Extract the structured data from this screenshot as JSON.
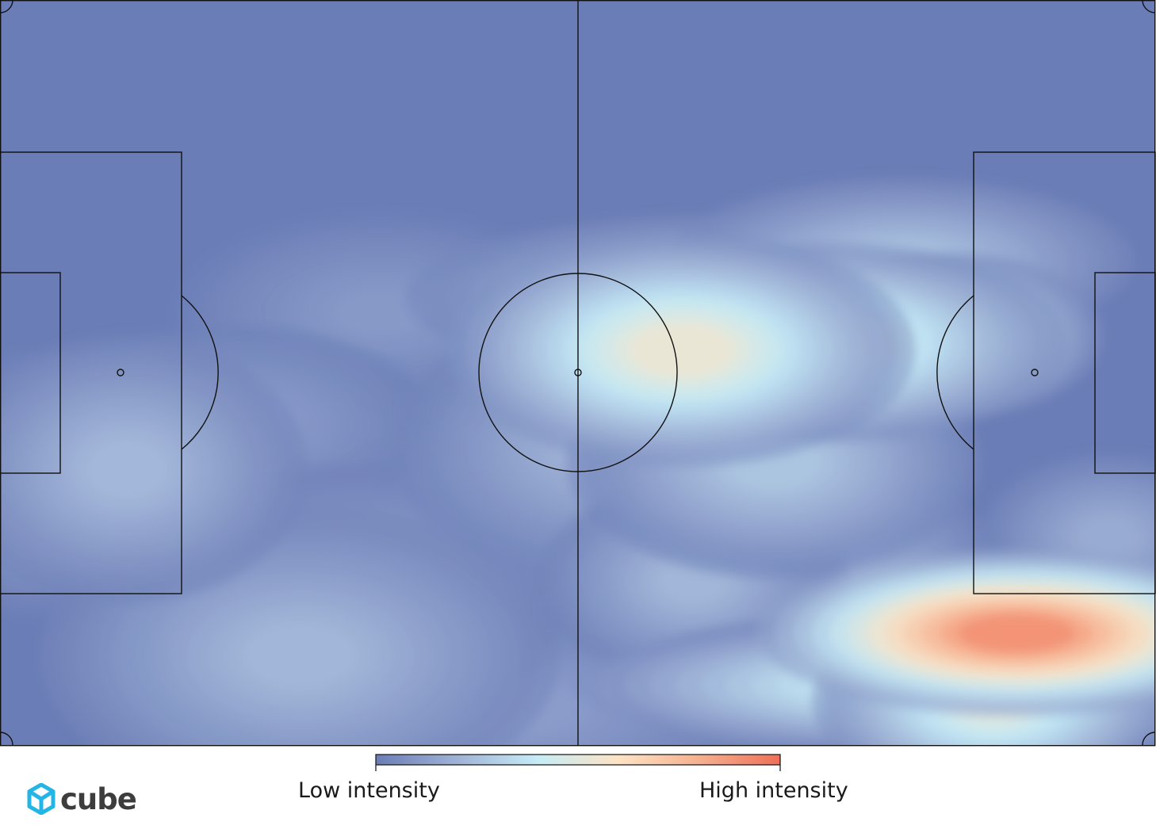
{
  "chart_data": {
    "type": "heatmap",
    "title": "",
    "xlabel": "",
    "ylabel": "",
    "colorbar": {
      "low_label": "Low intensity",
      "high_label": "High intensity",
      "colors": [
        "#6b7db6",
        "#9fb2d6",
        "#c6ecf7",
        "#fde3c4",
        "#f6b08f",
        "#ef6f57"
      ]
    },
    "hotspots": [
      {
        "x": 88,
        "y": 15,
        "intensity": 1.0,
        "rx": 10,
        "ry": 5
      },
      {
        "x": 86,
        "y": 6,
        "intensity": 0.55,
        "rx": 7,
        "ry": 6
      },
      {
        "x": 81,
        "y": 8,
        "intensity": 0.5,
        "rx": 14,
        "ry": 4
      },
      {
        "x": 69,
        "y": 8,
        "intensity": 0.35,
        "rx": 7,
        "ry": 4
      },
      {
        "x": 59,
        "y": 53,
        "intensity": 0.6,
        "rx": 9,
        "ry": 7
      },
      {
        "x": 72,
        "y": 54,
        "intensity": 0.55,
        "rx": 9,
        "ry": 6
      },
      {
        "x": 82,
        "y": 55,
        "intensity": 0.45,
        "rx": 6,
        "ry": 5
      },
      {
        "x": 67,
        "y": 38,
        "intensity": 0.3,
        "rx": 8,
        "ry": 7
      },
      {
        "x": 11,
        "y": 37,
        "intensity": 0.25,
        "rx": 7,
        "ry": 8
      },
      {
        "x": 26,
        "y": 12,
        "intensity": 0.24,
        "rx": 10,
        "ry": 9
      },
      {
        "x": 31,
        "y": 20,
        "intensity": 0.16,
        "rx": 8,
        "ry": 8
      },
      {
        "x": 39,
        "y": 29,
        "intensity": 0.14,
        "rx": 7,
        "ry": 6
      },
      {
        "x": 52,
        "y": 40,
        "intensity": 0.22,
        "rx": 8,
        "ry": 8
      },
      {
        "x": 20,
        "y": 43,
        "intensity": 0.14,
        "rx": 8,
        "ry": 6
      },
      {
        "x": 3,
        "y": 35,
        "intensity": 0.16,
        "rx": 4,
        "ry": 8
      },
      {
        "x": 60,
        "y": 22,
        "intensity": 0.24,
        "rx": 6,
        "ry": 6
      },
      {
        "x": 73,
        "y": 24,
        "intensity": 0.22,
        "rx": 6,
        "ry": 6
      },
      {
        "x": 62,
        "y": 60,
        "intensity": 0.28,
        "rx": 12,
        "ry": 5
      },
      {
        "x": 78,
        "y": 65,
        "intensity": 0.28,
        "rx": 9,
        "ry": 5
      },
      {
        "x": 45,
        "y": 5,
        "intensity": 0.14,
        "rx": 10,
        "ry": 6
      },
      {
        "x": 33,
        "y": 58,
        "intensity": 0.12,
        "rx": 8,
        "ry": 6
      },
      {
        "x": 96,
        "y": 28,
        "intensity": 0.2,
        "rx": 5,
        "ry": 5
      }
    ]
  },
  "brand": {
    "logo_name": "cube",
    "logo_color": "#22b5e6"
  }
}
